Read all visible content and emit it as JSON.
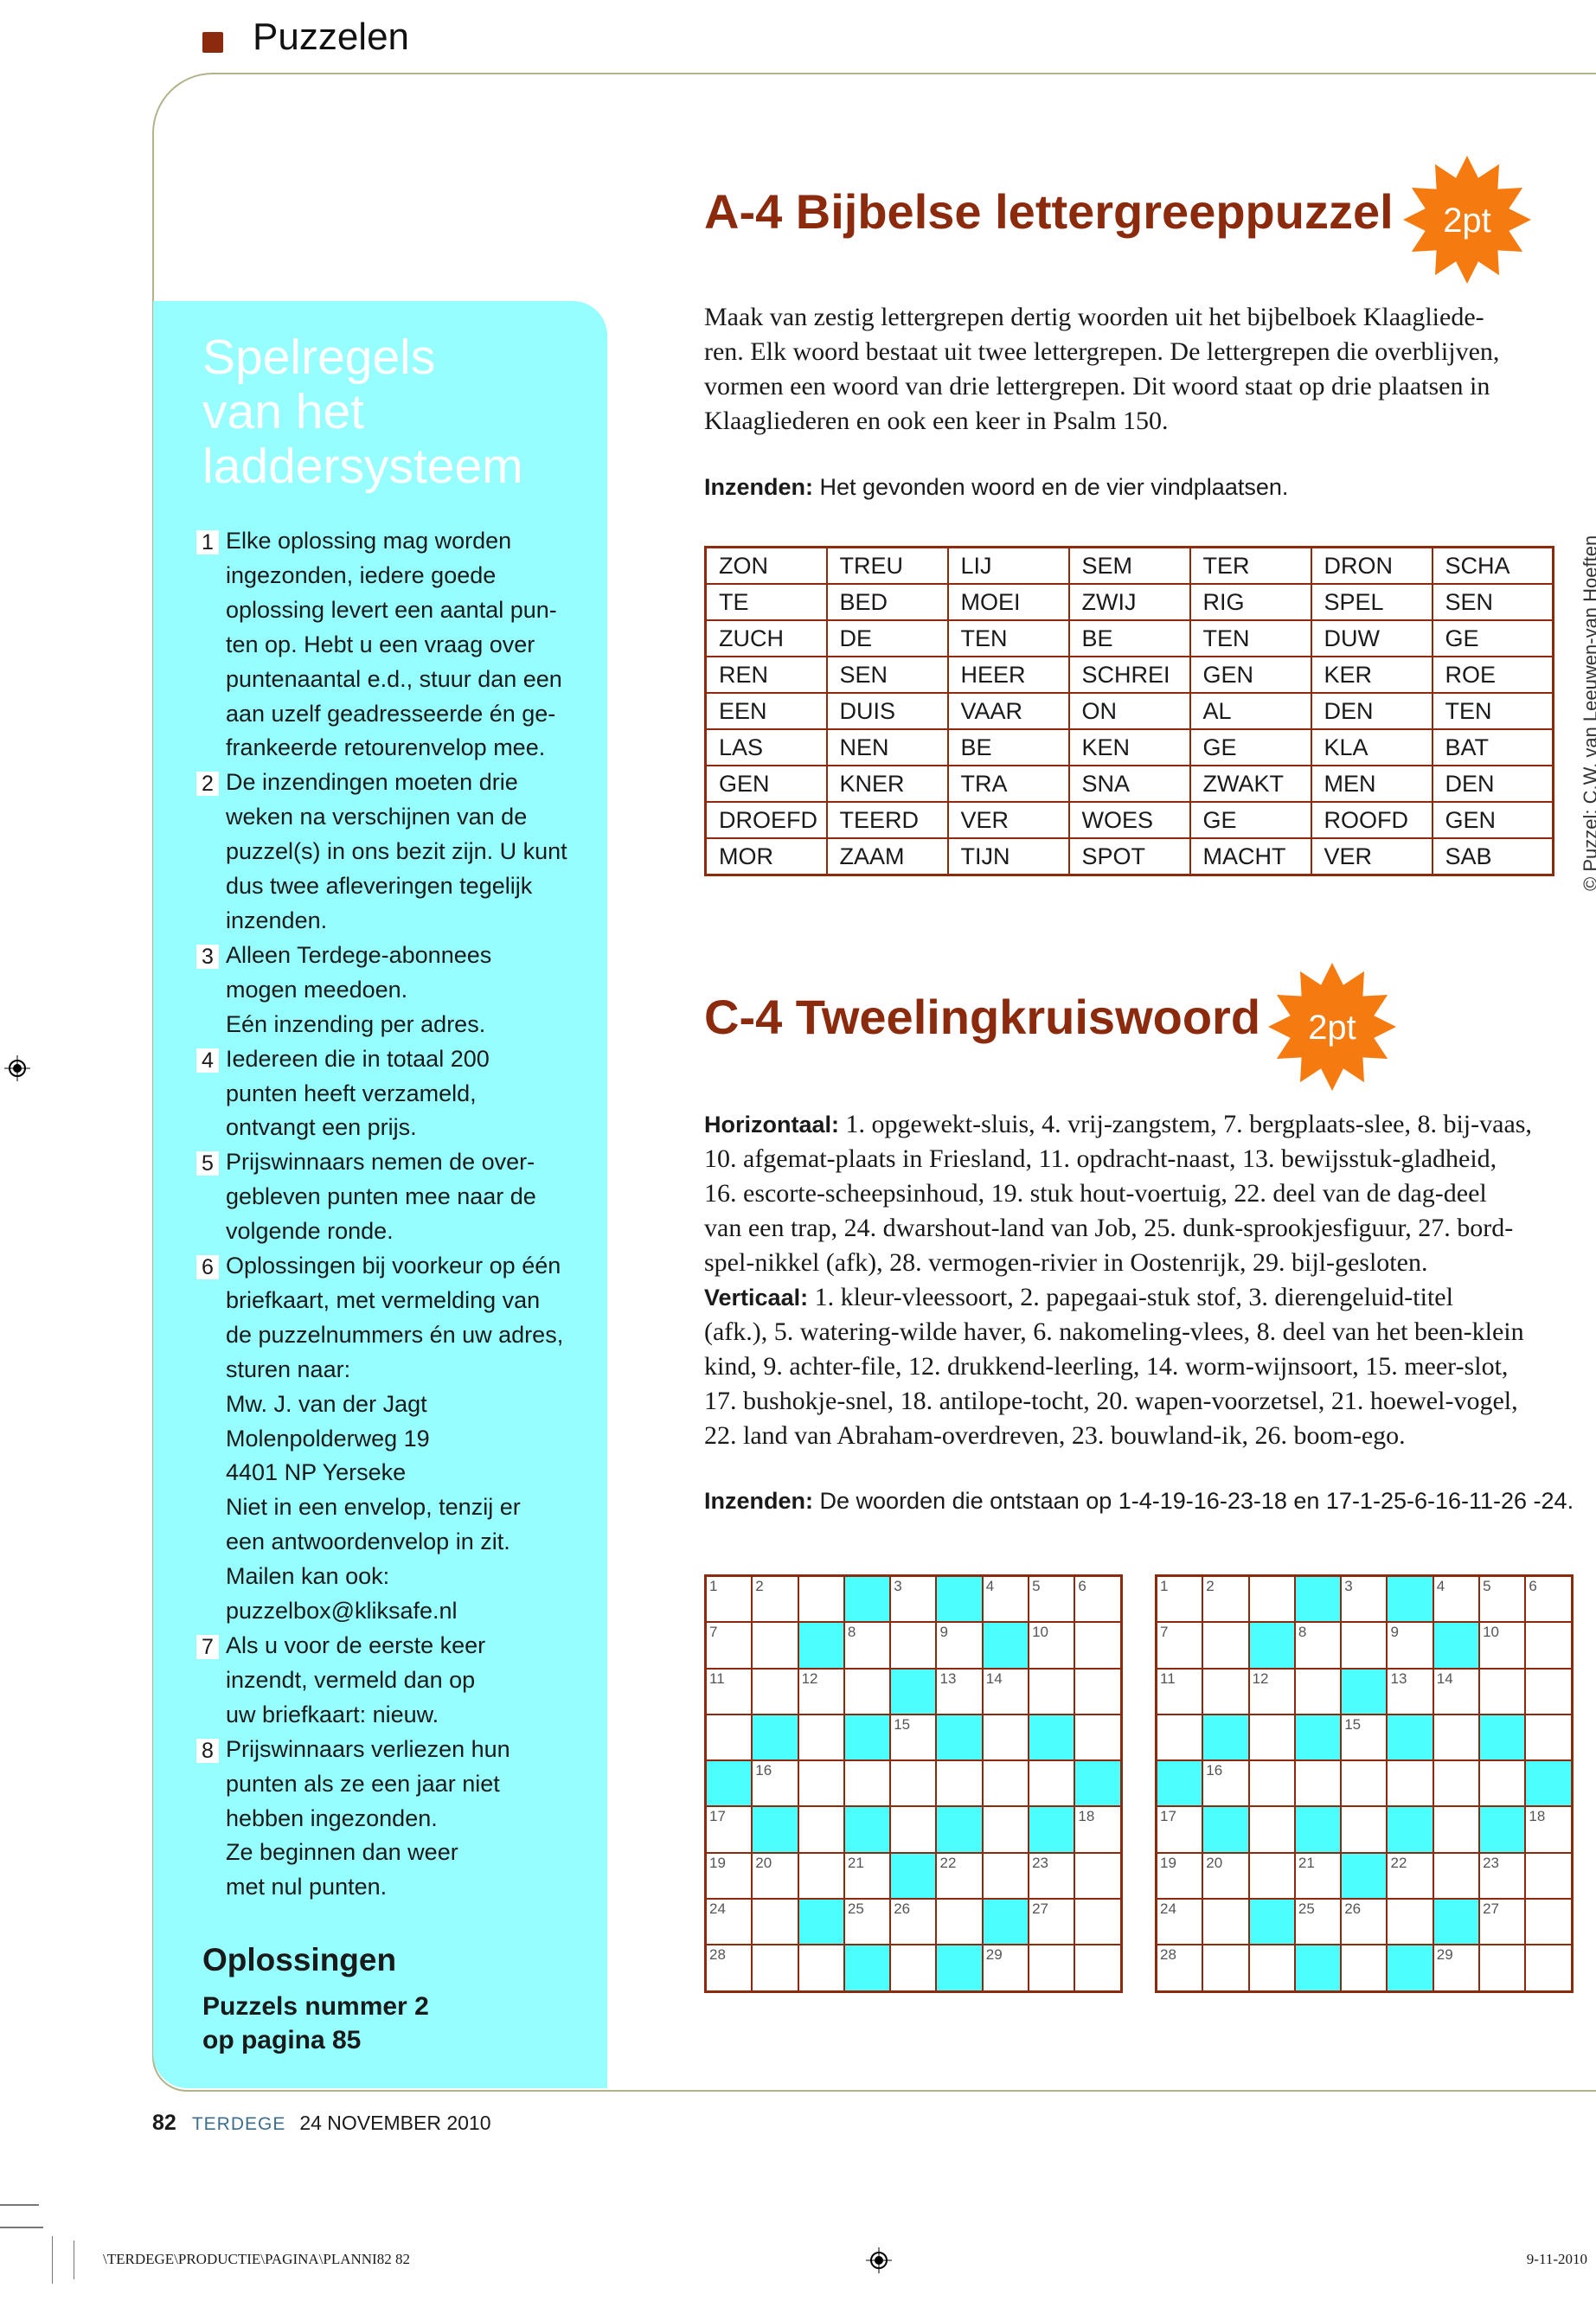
{
  "header": {
    "section": "Puzzelen",
    "accent_color": "#8b2a0c"
  },
  "rules": {
    "title_lines": [
      "Spelregels",
      "van het",
      "laddersysteem"
    ],
    "box_color": "#96fefe",
    "items": [
      {
        "num": "1",
        "lines": [
          "Elke oplossing mag worden",
          "ingezonden, iedere goede",
          "oplossing levert een aantal pun-",
          "ten op. Hebt u een vraag over",
          "puntenaantal e.d., stuur dan een",
          "aan uzelf geadresseerde én ge-",
          "frankeerde retourenvelop mee."
        ]
      },
      {
        "num": "2",
        "lines": [
          "De inzendingen moeten drie",
          "weken na verschijnen van de",
          "puzzel(s) in ons bezit zijn. U kunt",
          "dus twee afleveringen tegelijk",
          "inzenden."
        ]
      },
      {
        "num": "3",
        "lines": [
          "Alleen Terdege-abonnees",
          "mogen meedoen.",
          "Eén inzending per adres."
        ]
      },
      {
        "num": "4",
        "lines": [
          "Iedereen die in totaal 200",
          "punten heeft verzameld,",
          "ontvangt een prijs."
        ]
      },
      {
        "num": "5",
        "lines": [
          "Prijswinnaars nemen de over-",
          "gebleven punten mee naar de",
          "volgende ronde."
        ]
      },
      {
        "num": "6",
        "lines": [
          "Oplossingen bij voorkeur op één",
          "briefkaart, met vermelding  van",
          "de puzzelnummers én uw adres,",
          "sturen naar:",
          "Mw. J. van der Jagt",
          "Molenpolderweg 19",
          "4401 NP Yerseke",
          "Niet in een envelop, tenzij er",
          "een antwoordenvelop in zit.",
          "Mailen kan ook:",
          "puzzelbox@kliksafe.nl"
        ]
      },
      {
        "num": "7",
        "lines": [
          "Als u voor de eerste keer",
          "inzendt, vermeld dan op",
          "uw briefkaart: nieuw."
        ]
      },
      {
        "num": "8",
        "lines": [
          "Prijswinnaars verliezen hun",
          "punten als ze een jaar niet",
          "hebben ingezonden.",
          "Ze beginnen dan weer",
          "met nul punten."
        ]
      }
    ],
    "solutions_title": "Oplossingen",
    "solutions_lines": [
      "Puzzels nummer 2",
      "op pagina 85"
    ]
  },
  "puzzle_a4": {
    "title": "A-4 Bijbelse lettergreeppuzzel",
    "badge": "2pt",
    "badge_color": "#f57a10",
    "intro_lines": [
      "Maak van zestig lettergrepen dertig woorden uit het bijbelboek Klaagliede-",
      "ren. Elk woord bestaat uit twee lettergrepen. De lettergrepen die overblijven,",
      "vormen een woord van drie lettergrepen. Dit woord staat op drie plaatsen in",
      "Klaagliederen en ook een keer in Psalm 150."
    ],
    "submit_label": "Inzenden:",
    "submit_text": "Het gevonden woord en de vier vindplaatsen.",
    "table": [
      [
        "ZON",
        "TREU",
        "LIJ",
        "SEM",
        "TER",
        "DRON",
        "SCHA"
      ],
      [
        "TE",
        "BED",
        "MOEI",
        "ZWIJ",
        "RIG",
        "SPEL",
        "SEN"
      ],
      [
        "ZUCH",
        "DE",
        "TEN",
        "BE",
        "TEN",
        "DUW",
        "GE"
      ],
      [
        "REN",
        "SEN",
        "HEER",
        "SCHREI",
        "GEN",
        "KER",
        "ROE"
      ],
      [
        "EEN",
        "DUIS",
        "VAAR",
        "ON",
        "AL",
        "DEN",
        "TEN"
      ],
      [
        "LAS",
        "NEN",
        "BE",
        "KEN",
        "GE",
        "KLA",
        "BAT"
      ],
      [
        "GEN",
        "KNER",
        "TRA",
        "SNA",
        "ZWAKT",
        "MEN",
        "DEN"
      ],
      [
        "DROEFD",
        "TEERD",
        "VER",
        "WOES",
        "GE",
        "ROOFD",
        "GEN"
      ],
      [
        "MOR",
        "ZAAM",
        "TIJN",
        "SPOT",
        "MACHT",
        "VER",
        "SAB"
      ]
    ],
    "copyright": "© Puzzel: C.W. van Leeuwen-van Hoeften"
  },
  "puzzle_c4": {
    "title": "C-4 Tweelingkruiswoord",
    "badge": "2pt",
    "clue_lines": [
      {
        "label": "Horizontaal:",
        "text": "1. opgewekt-sluis, 4. vrij-zangstem, 7. bergplaats-slee, 8. bij-vaas,"
      },
      {
        "label": "",
        "text": "10. afgemat-plaats in Friesland, 11. opdracht-naast, 13. bewijsstuk-gladheid,"
      },
      {
        "label": "",
        "text": "16. escorte-scheepsinhoud, 19. stuk hout-voertuig, 22. deel van de dag-deel"
      },
      {
        "label": "",
        "text": "van een trap, 24. dwarshout-land van Job, 25. dunk-sprookjesfiguur, 27. bord-"
      },
      {
        "label": "",
        "text": "spel-nikkel (afk), 28. vermogen-rivier in Oostenrijk, 29. bijl-gesloten."
      },
      {
        "label": "Verticaal:",
        "text": "1. kleur-vleessoort, 2. papegaai-stuk stof, 3. dierengeluid-titel"
      },
      {
        "label": "",
        "text": "(afk.), 5. watering-wilde haver, 6. nakomeling-vlees, 8. deel van het been-klein"
      },
      {
        "label": "",
        "text": "kind, 9. achter-file, 12. drukkend-leerling, 14. worm-wijnsoort, 15. meer-slot,"
      },
      {
        "label": "",
        "text": "17. bushokje-snel, 18. antilope-tocht, 20. wapen-voorzetsel, 21. hoewel-vogel,"
      },
      {
        "label": "",
        "text": "22. land van Abraham-overdreven, 23. bouwland-ik, 26. boom-ego."
      }
    ],
    "submit_label": "Inzenden:",
    "submit_text": "De woorden die ontstaan op 1-4-19-16-23-18 en 17-1-25-6-16-11-26 -24.",
    "block_color": "#4cfefe",
    "grid": [
      [
        "1",
        "2",
        "",
        "#",
        "3",
        "#",
        "4",
        "5",
        "6"
      ],
      [
        "7",
        "",
        "#",
        "8",
        "",
        "9",
        "#",
        "10",
        ""
      ],
      [
        "11",
        "",
        "12",
        "",
        "#",
        "13",
        "14",
        "",
        ""
      ],
      [
        "",
        "#",
        "",
        "#",
        "15",
        "#",
        "",
        "#",
        ""
      ],
      [
        "#",
        "16",
        "",
        "",
        "",
        "",
        "",
        "",
        "#"
      ],
      [
        "17",
        "#",
        "",
        "#",
        "",
        "#",
        "",
        "#",
        "18"
      ],
      [
        "19",
        "20",
        "",
        "21",
        "#",
        "22",
        "",
        "23",
        ""
      ],
      [
        "24",
        "",
        "#",
        "25",
        "26",
        "",
        "#",
        "27",
        ""
      ],
      [
        "28",
        "",
        "",
        "#",
        "",
        "#",
        "29",
        "",
        ""
      ]
    ]
  },
  "footer": {
    "page": "82",
    "magazine": "TERDEGE",
    "date": "24 NOVEMBER 2010"
  },
  "slug": {
    "path": "\\TERDEGE\\PRODUCTIE\\PAGINA\\PLANNI82   82",
    "date": "9-11-2010"
  }
}
